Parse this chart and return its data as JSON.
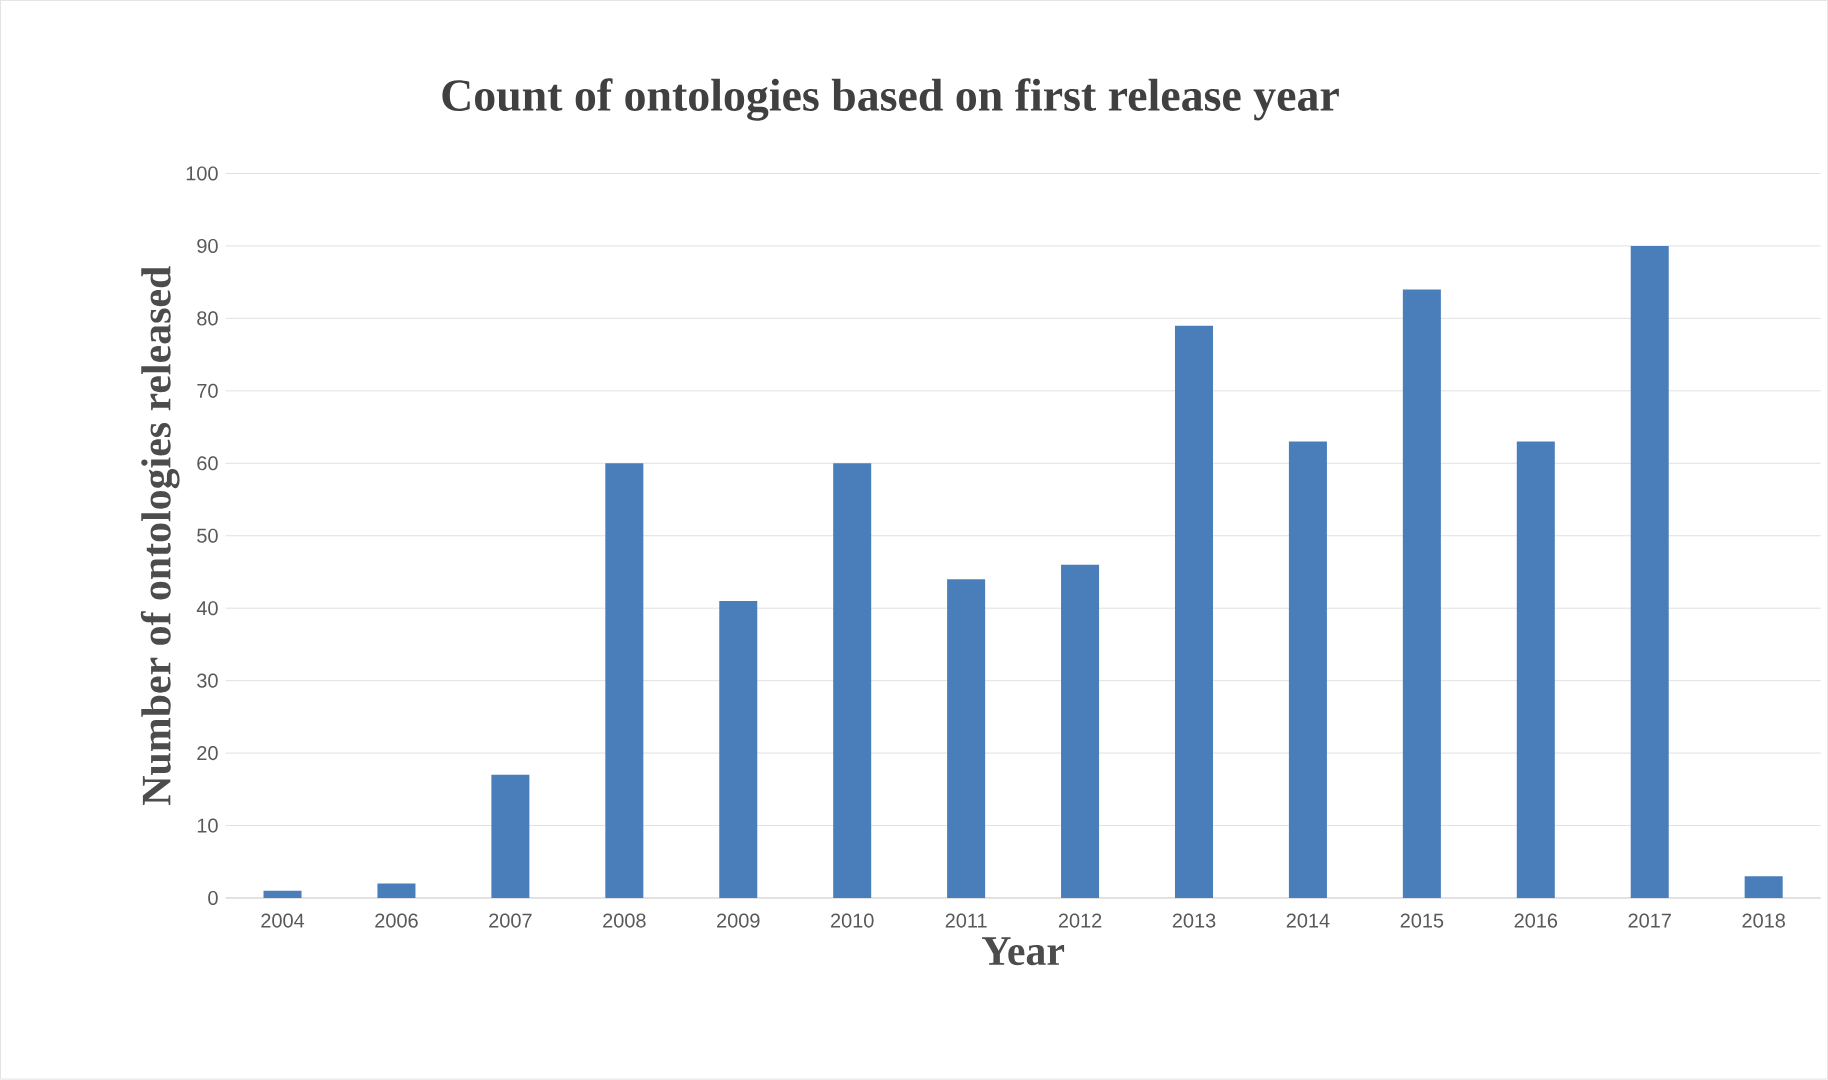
{
  "chart_data": {
    "type": "bar",
    "title": "Count of ontologies based on first release year",
    "xlabel": "Year",
    "ylabel": "Number of ontologies released",
    "categories": [
      "2004",
      "2006",
      "2007",
      "2008",
      "2009",
      "2010",
      "2011",
      "2012",
      "2013",
      "2014",
      "2015",
      "2016",
      "2017",
      "2018"
    ],
    "values": [
      1,
      2,
      17,
      60,
      41,
      60,
      44,
      46,
      79,
      63,
      84,
      63,
      90,
      3
    ],
    "color": "#4a7ebb",
    "ylim": [
      0,
      100
    ],
    "yticks": [
      0,
      10,
      20,
      30,
      40,
      50,
      60,
      70,
      80,
      90,
      100
    ],
    "grid": "y"
  }
}
